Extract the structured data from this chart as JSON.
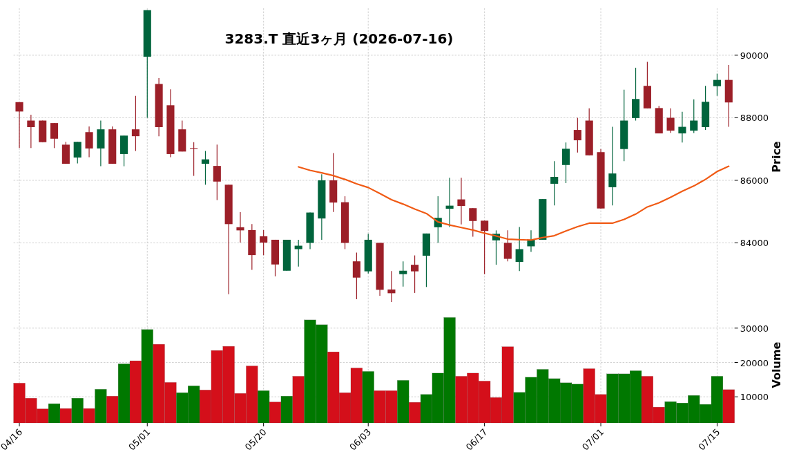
{
  "chart_data": [
    {
      "type": "candlestick",
      "title": "3283.T 直近3ヶ月 (2026-07-16)",
      "ylabel": "Price",
      "ylim": [
        82000,
        91500
      ],
      "yticks": [
        84000,
        86000,
        88000,
        90000
      ],
      "grid": true,
      "tick_labels": "y",
      "categories": [
        null,
        null,
        null,
        null,
        null,
        null,
        null,
        null,
        null,
        null,
        null,
        null,
        null,
        null,
        null,
        null,
        null,
        null,
        null,
        null,
        null,
        null,
        null,
        null,
        null,
        null,
        null,
        null,
        null,
        null,
        null,
        null,
        null,
        null,
        null,
        null,
        null,
        null,
        null,
        null,
        null,
        null,
        null,
        null,
        null,
        null,
        null,
        null,
        null,
        null,
        null,
        null,
        null,
        null,
        null,
        null,
        null,
        null,
        null,
        null,
        null,
        null
      ],
      "ohlc": [
        [
          88500,
          88500,
          87030,
          88200
        ],
        [
          87910,
          88100,
          87030,
          87700
        ],
        [
          87910,
          87910,
          87220,
          87220
        ],
        [
          87830,
          87830,
          87030,
          87330
        ],
        [
          87140,
          87230,
          86530,
          86530
        ],
        [
          86730,
          87230,
          86540,
          87230
        ],
        [
          87540,
          87720,
          86740,
          87020
        ],
        [
          87020,
          87910,
          86450,
          87630
        ],
        [
          87630,
          87720,
          86530,
          86530
        ],
        [
          86840,
          87430,
          86450,
          87430
        ],
        [
          87630,
          88700,
          86940,
          87410
        ],
        [
          89950,
          91440,
          88000,
          91440
        ],
        [
          89080,
          89270,
          87410,
          87700
        ],
        [
          88400,
          88910,
          86740,
          86840
        ],
        [
          87630,
          87910,
          86920,
          86920
        ],
        [
          87030,
          87220,
          86140,
          87030
        ],
        [
          86530,
          86940,
          85860,
          86670
        ],
        [
          86460,
          87140,
          85370,
          85960
        ],
        [
          85860,
          85860,
          82360,
          84600
        ],
        [
          84500,
          84980,
          84010,
          84400
        ],
        [
          84410,
          84600,
          83140,
          83610
        ],
        [
          84210,
          84410,
          83610,
          84010
        ],
        [
          84100,
          84100,
          82930,
          83310
        ],
        [
          83110,
          84100,
          83110,
          84100
        ],
        [
          83800,
          84100,
          83240,
          83910
        ],
        [
          84000,
          84970,
          83800,
          84970
        ],
        [
          84780,
          86190,
          84100,
          86000
        ],
        [
          86000,
          86870,
          84990,
          85290
        ],
        [
          85300,
          85490,
          83800,
          84000
        ],
        [
          83410,
          83690,
          82200,
          82890
        ],
        [
          83090,
          84290,
          83020,
          84100
        ],
        [
          84000,
          84000,
          82310,
          82500
        ],
        [
          82510,
          83100,
          82110,
          82390
        ],
        [
          83000,
          83410,
          82600,
          83110
        ],
        [
          83300,
          83600,
          82400,
          83090
        ],
        [
          83590,
          84300,
          82590,
          84300
        ],
        [
          84500,
          85490,
          84000,
          84800
        ],
        [
          85090,
          86080,
          84510,
          85190
        ],
        [
          85390,
          86080,
          84590,
          85180
        ],
        [
          85110,
          85110,
          84200,
          84700
        ],
        [
          84710,
          84710,
          83000,
          84380
        ],
        [
          84080,
          84400,
          83300,
          84290
        ],
        [
          84000,
          84400,
          83410,
          83490
        ],
        [
          83390,
          84510,
          83100,
          83800
        ],
        [
          83890,
          84400,
          83710,
          84100
        ],
        [
          84100,
          85400,
          84100,
          85400
        ],
        [
          85890,
          86610,
          85200,
          86110
        ],
        [
          86490,
          87210,
          85910,
          87010
        ],
        [
          87610,
          88000,
          86890,
          87280
        ],
        [
          87910,
          88300,
          86800,
          86800
        ],
        [
          86900,
          87000,
          85100,
          85100
        ],
        [
          85780,
          87710,
          85200,
          86220
        ],
        [
          87000,
          88900,
          86610,
          87910
        ],
        [
          87990,
          89600,
          87910,
          88600
        ],
        [
          89020,
          89790,
          88300,
          88300
        ],
        [
          88310,
          88380,
          87500,
          87500
        ],
        [
          88000,
          88300,
          87520,
          87590
        ],
        [
          87500,
          88190,
          87210,
          87710
        ],
        [
          87590,
          88590,
          87510,
          87910
        ],
        [
          87700,
          89020,
          87610,
          88510
        ],
        [
          89010,
          89410,
          88700,
          89210
        ],
        [
          89210,
          89690,
          87710,
          88490
        ]
      ],
      "colors": [
        "#9c1f28",
        "#9c1f28",
        "#9c1f28",
        "#9c1f28",
        "#9c1f28",
        "#00643c",
        "#9c1f28",
        "#00643c",
        "#9c1f28",
        "#00643c",
        "#9c1f28",
        "#00643c",
        "#9c1f28",
        "#9c1f28",
        "#9c1f28",
        "#9c1f28",
        "#00643c",
        "#9c1f28",
        "#9c1f28",
        "#9c1f28",
        "#9c1f28",
        "#9c1f28",
        "#9c1f28",
        "#00643c",
        "#00643c",
        "#00643c",
        "#00643c",
        "#9c1f28",
        "#9c1f28",
        "#9c1f28",
        "#00643c",
        "#9c1f28",
        "#9c1f28",
        "#00643c",
        "#9c1f28",
        "#00643c",
        "#00643c",
        "#00643c",
        "#9c1f28",
        "#9c1f28",
        "#9c1f28",
        "#00643c",
        "#9c1f28",
        "#00643c",
        "#00643c",
        "#00643c",
        "#00643c",
        "#00643c",
        "#9c1f28",
        "#9c1f28",
        "#9c1f28",
        "#00643c",
        "#00643c",
        "#00643c",
        "#9c1f28",
        "#9c1f28",
        "#9c1f28",
        "#00643c",
        "#00643c",
        "#00643c",
        "#00643c",
        "#9c1f28"
      ],
      "series": [
        {
          "type": "line",
          "color": "#f05a14",
          "values": [
            null,
            null,
            null,
            null,
            null,
            null,
            null,
            null,
            null,
            null,
            null,
            null,
            null,
            null,
            null,
            null,
            null,
            null,
            null,
            null,
            null,
            null,
            null,
            null,
            86430,
            86320,
            86240,
            86150,
            86030,
            85890,
            85770,
            85580,
            85380,
            85240,
            85080,
            84940,
            84670,
            84570,
            84490,
            84410,
            84310,
            84220,
            84120,
            84100,
            84090,
            84170,
            84230,
            84380,
            84520,
            84630,
            84630,
            84630,
            84750,
            84920,
            85150,
            85280,
            85460,
            85650,
            85820,
            86030,
            86280,
            86450
          ]
        }
      ]
    },
    {
      "type": "bar",
      "ylabel": "Volume",
      "ylim": [
        2400,
        36200
      ],
      "yticks": [
        10000,
        20000,
        30000
      ],
      "grid": true,
      "categories": [
        "04/16",
        null,
        null,
        null,
        null,
        null,
        null,
        null,
        null,
        null,
        null,
        "05/01",
        null,
        null,
        null,
        null,
        null,
        null,
        null,
        null,
        null,
        "05/20",
        null,
        null,
        null,
        null,
        null,
        null,
        null,
        null,
        "06/03",
        null,
        null,
        null,
        null,
        null,
        null,
        null,
        null,
        null,
        "06/17",
        null,
        null,
        null,
        null,
        null,
        null,
        null,
        null,
        null,
        "07/01",
        null,
        null,
        null,
        null,
        null,
        null,
        null,
        null,
        null,
        "07/15",
        null
      ],
      "values": [
        14000,
        9600,
        6500,
        8000,
        6600,
        9600,
        6600,
        12200,
        10200,
        19600,
        20500,
        29600,
        25300,
        14200,
        11200,
        13200,
        12000,
        23500,
        24700,
        11000,
        19000,
        11800,
        8500,
        10200,
        16000,
        32400,
        31000,
        23100,
        11200,
        18400,
        17400,
        11800,
        11800,
        14800,
        8400,
        10700,
        16900,
        33100,
        16000,
        16900,
        14600,
        9800,
        24600,
        11300,
        15700,
        18000,
        15300,
        14100,
        13700,
        18200,
        10700,
        16700,
        16700,
        17600,
        16000,
        7000,
        8600,
        8200,
        10400,
        7800,
        16000,
        12100
      ],
      "colors": [
        "#d40f1a",
        "#d40f1a",
        "#d40f1a",
        "#007800",
        "#d40f1a",
        "#007800",
        "#d40f1a",
        "#007800",
        "#d40f1a",
        "#007800",
        "#d40f1a",
        "#007800",
        "#d40f1a",
        "#d40f1a",
        "#007800",
        "#007800",
        "#d40f1a",
        "#d40f1a",
        "#d40f1a",
        "#d40f1a",
        "#d40f1a",
        "#007800",
        "#d40f1a",
        "#007800",
        "#d40f1a",
        "#007800",
        "#007800",
        "#d40f1a",
        "#d40f1a",
        "#d40f1a",
        "#007800",
        "#d40f1a",
        "#d40f1a",
        "#007800",
        "#d40f1a",
        "#007800",
        "#007800",
        "#007800",
        "#d40f1a",
        "#d40f1a",
        "#d40f1a",
        "#d40f1a",
        "#d40f1a",
        "#007800",
        "#007800",
        "#007800",
        "#007800",
        "#007800",
        "#007800",
        "#d40f1a",
        "#d40f1a",
        "#007800",
        "#007800",
        "#007800",
        "#d40f1a",
        "#d40f1a",
        "#007800",
        "#007800",
        "#007800",
        "#007800",
        "#007800",
        "#d40f1a"
      ]
    }
  ]
}
